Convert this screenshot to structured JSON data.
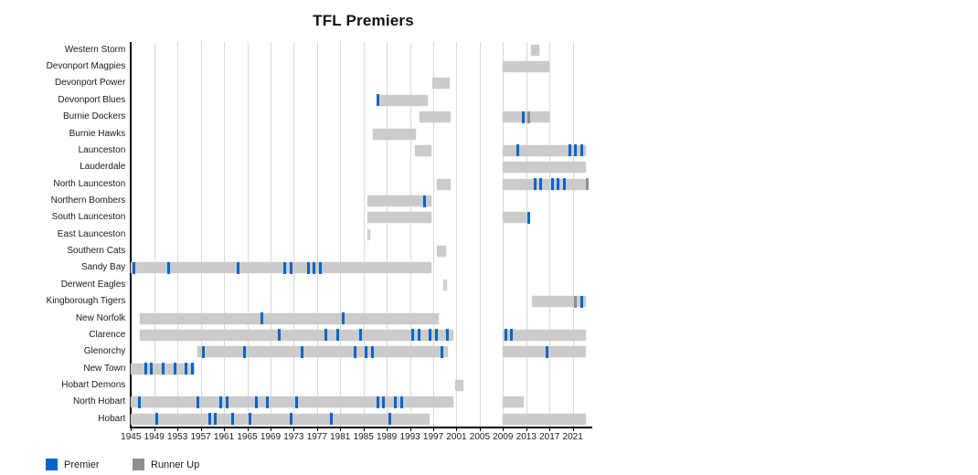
{
  "chart_data": {
    "type": "timeline",
    "title": "TFL Premiers",
    "legend": {
      "premier": {
        "label": "Premier",
        "color": "#0066cc"
      },
      "runner_up": {
        "label": "Runner Up",
        "color": "#8f8f8f"
      }
    },
    "colors": {
      "span": "#cbcbcb",
      "thin_span": "#d2d2d2",
      "grid": "#d9d9d9",
      "axis": "#000000"
    },
    "x_axis": {
      "min": 1945,
      "max": 2024.5,
      "tick_years": [
        1945,
        1949,
        1953,
        1957,
        1961,
        1965,
        1969,
        1973,
        1977,
        1981,
        1985,
        1989,
        1993,
        1997,
        2001,
        2005,
        2009,
        2013,
        2017,
        2021
      ]
    },
    "teams": [
      {
        "name": "Western Storm",
        "spans": [
          [
            2013.8,
            2015.2
          ]
        ],
        "premiers": [],
        "runners_up": []
      },
      {
        "name": "Devonport Magpies",
        "spans": [
          [
            2009,
            2017
          ]
        ],
        "premiers": [],
        "runners_up": []
      },
      {
        "name": "Devonport Power",
        "spans": [
          [
            1996.8,
            1999.8
          ]
        ],
        "premiers": [],
        "runners_up": []
      },
      {
        "name": "Devonport Blues",
        "spans": [
          [
            1987.5,
            1996
          ]
        ],
        "premiers": [
          1987
        ],
        "runners_up": []
      },
      {
        "name": "Burnie Dockers",
        "spans": [
          [
            1994.6,
            2000
          ],
          [
            2009,
            2017
          ]
        ],
        "premiers": [
          2012
        ],
        "runners_up": [
          2013
        ]
      },
      {
        "name": "Burnie Hawks",
        "spans": [
          [
            1986.6,
            1994
          ]
        ],
        "premiers": [],
        "runners_up": []
      },
      {
        "name": "Launceston",
        "spans": [
          [
            1993.9,
            1996.7
          ],
          [
            2009,
            2023.3
          ]
        ],
        "premiers": [
          2011,
          2020,
          2021,
          2022
        ],
        "runners_up": []
      },
      {
        "name": "Lauderdale",
        "spans": [
          [
            2009,
            2023.3
          ]
        ],
        "premiers": [],
        "runners_up": []
      },
      {
        "name": "North Launceston",
        "spans": [
          [
            1997.6,
            2000
          ],
          [
            2009,
            2023.3
          ]
        ],
        "premiers": [
          2014,
          2015,
          2017,
          2018,
          2019
        ],
        "runners_up": [
          2023
        ]
      },
      {
        "name": "Northern Bombers",
        "spans": [
          [
            1985.7,
            1996.7
          ]
        ],
        "premiers": [
          1995
        ],
        "runners_up": []
      },
      {
        "name": "South Launceston",
        "spans": [
          [
            1985.7,
            1996.7
          ],
          [
            2009,
            2013
          ]
        ],
        "premiers": [
          2013
        ],
        "runners_up": []
      },
      {
        "name": "East Launceston",
        "spans": [
          [
            1985.7,
            1986.1
          ]
        ],
        "premiers": [],
        "runners_up": []
      },
      {
        "name": "Southern Cats",
        "spans": [
          [
            1997.6,
            1999.2
          ]
        ],
        "premiers": [],
        "runners_up": []
      },
      {
        "name": "Sandy Bay",
        "spans": [
          [
            1944.9,
            1996.7
          ]
        ],
        "premiers": [
          1945,
          1951,
          1963,
          1971,
          1972,
          1975,
          1976,
          1977
        ],
        "runners_up": []
      },
      {
        "name": "Derwent Eagles",
        "spans": [
          [
            1998.8,
            1999.3
          ]
        ],
        "premiers": [],
        "runners_up": []
      },
      {
        "name": "Kingborough Tigers",
        "spans": [
          [
            2013.9,
            2023.2
          ]
        ],
        "premiers": [
          2022
        ],
        "runners_up": [
          2021
        ]
      },
      {
        "name": "New Norfolk",
        "spans": [
          [
            1946.5,
            1997.9
          ]
        ],
        "premiers": [
          1967,
          1981
        ],
        "runners_up": []
      },
      {
        "name": "Clarence",
        "spans": [
          [
            1946.5,
            2000.5
          ],
          [
            2009,
            2023.3
          ]
        ],
        "premiers": [
          1970,
          1978,
          1980,
          1984,
          1993,
          1994,
          1996,
          1997,
          1999,
          2009,
          2010
        ],
        "runners_up": []
      },
      {
        "name": "Glenorchy",
        "spans": [
          [
            1956.5,
            1999.5
          ],
          [
            2009,
            2023.3
          ]
        ],
        "premiers": [
          1957,
          1964,
          1974,
          1983,
          1985,
          1986,
          1998,
          2016
        ],
        "runners_up": []
      },
      {
        "name": "New Town",
        "spans": [
          [
            1944.9,
            1956
          ]
        ],
        "premiers": [
          1947,
          1948,
          1950,
          1952,
          1954,
          1955
        ],
        "runners_up": []
      },
      {
        "name": "Hobart Demons",
        "spans": [
          [
            2000.8,
            2002.2
          ]
        ],
        "premiers": [],
        "runners_up": []
      },
      {
        "name": "North Hobart",
        "spans": [
          [
            1944.9,
            2000.4
          ],
          [
            2009,
            2012.6
          ]
        ],
        "premiers": [
          1946,
          1956,
          1960,
          1961,
          1966,
          1968,
          1973,
          1987,
          1988,
          1990,
          1991
        ],
        "runners_up": []
      },
      {
        "name": "Hobart",
        "spans": [
          [
            1944.9,
            1996.4
          ],
          [
            2009,
            2023.3
          ]
        ],
        "premiers": [
          1949,
          1958,
          1959,
          1962,
          1965,
          1972,
          1979,
          1989
        ],
        "runners_up": []
      }
    ]
  }
}
